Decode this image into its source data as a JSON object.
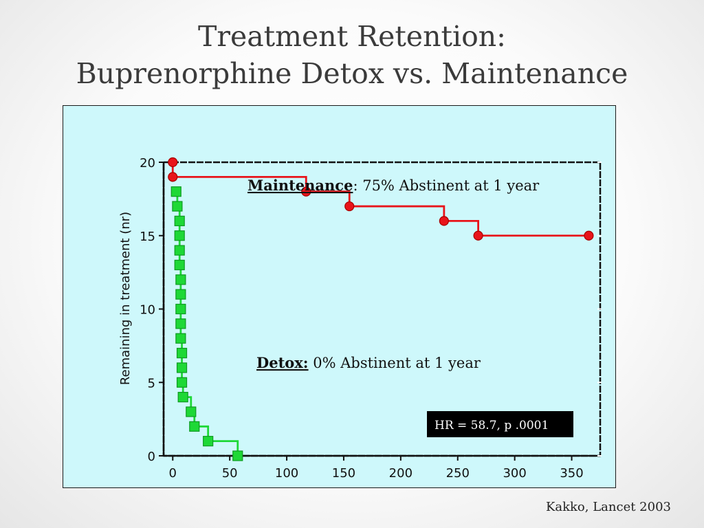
{
  "slide": {
    "title_line1": "Treatment Retention:",
    "title_line2": "Buprenorphine Detox vs. Maintenance",
    "citation": "Kakko, Lancet 2003"
  },
  "chart_data": {
    "type": "line",
    "title": "",
    "xlabel": "",
    "ylabel": "Remaining in treatment  (nr)",
    "xlim": [
      -8,
      375
    ],
    "ylim": [
      0,
      20
    ],
    "x_ticks": [
      0,
      50,
      100,
      150,
      200,
      250,
      300,
      350
    ],
    "y_ticks": [
      0,
      5,
      10,
      15,
      20
    ],
    "grid": false,
    "series": [
      {
        "key": "maintenance",
        "color": "#e8141a",
        "marker": "circle",
        "step_points": [
          [
            0,
            20
          ],
          [
            0,
            19
          ],
          [
            117,
            18
          ],
          [
            155,
            17
          ],
          [
            238,
            16
          ],
          [
            268,
            15
          ],
          [
            365,
            15
          ]
        ],
        "marked_points": [
          [
            0,
            20
          ],
          [
            0,
            19
          ],
          [
            117,
            18
          ],
          [
            155,
            17
          ],
          [
            238,
            16
          ],
          [
            268,
            15
          ],
          [
            365,
            15
          ]
        ]
      },
      {
        "key": "detox",
        "color": "#1ed836",
        "marker": "square",
        "step_points": [
          [
            3,
            18
          ],
          [
            4,
            17
          ],
          [
            6,
            16
          ],
          [
            6,
            15
          ],
          [
            6,
            14
          ],
          [
            6,
            13
          ],
          [
            7,
            12
          ],
          [
            7,
            11
          ],
          [
            7,
            10
          ],
          [
            7,
            9
          ],
          [
            7,
            8
          ],
          [
            8,
            7
          ],
          [
            8,
            6
          ],
          [
            8,
            5
          ],
          [
            9,
            4
          ],
          [
            16,
            3
          ],
          [
            19,
            2
          ],
          [
            31,
            1
          ],
          [
            57,
            0
          ]
        ],
        "marked_points": [
          [
            3,
            18
          ],
          [
            4,
            17
          ],
          [
            6,
            16
          ],
          [
            6,
            15
          ],
          [
            6,
            14
          ],
          [
            6,
            13
          ],
          [
            7,
            12
          ],
          [
            7,
            11
          ],
          [
            7,
            10
          ],
          [
            7,
            9
          ],
          [
            7,
            8
          ],
          [
            8,
            7
          ],
          [
            8,
            6
          ],
          [
            8,
            5
          ],
          [
            9,
            4
          ],
          [
            16,
            3
          ],
          [
            19,
            2
          ],
          [
            31,
            1
          ],
          [
            57,
            0
          ]
        ]
      }
    ],
    "annotations": {
      "maintenance_label": "Maintenance",
      "maintenance_text": ": 75% Abstinent at 1 year",
      "detox_label": "Detox:",
      "detox_text": " 0% Abstinent at 1 year",
      "hr_text": "HR = 58.7, p .0001"
    }
  }
}
